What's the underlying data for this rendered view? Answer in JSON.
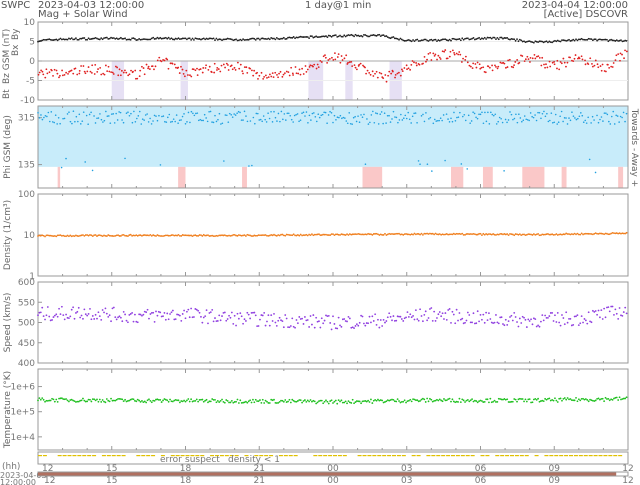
{
  "header": {
    "org": "SWPC",
    "start": "2023-04-03 12:00:00",
    "subtitle": "Mag + Solar Wind",
    "resolution": "1 day@1 min",
    "end": "2023-04-04 12:00:00",
    "source": "[Active] DSCOVR"
  },
  "colors": {
    "bt": "#222222",
    "bz": "#e02020",
    "bx": "#a050e0",
    "by": "#20a8e0",
    "phi": "#20a0e0",
    "towards": "#c8ecfa",
    "away": "#fac8c8",
    "density": "#f08020",
    "speed": "#9040e0",
    "temp": "#20c020",
    "error": "#ff3030",
    "suspect": "#e0c000",
    "dens_low": "#ff9020"
  },
  "chart_data": [
    {
      "type": "scatter",
      "name": "mag",
      "ylabel_parts": [
        "Bt",
        "Bz GSM (nT)",
        "Bx",
        "By"
      ],
      "ylim": [
        -10,
        10
      ],
      "yticks": [
        "10",
        "5",
        "0",
        "-5",
        "-10"
      ],
      "x_hours": [
        0,
        1,
        2,
        3,
        4,
        5,
        6,
        7,
        8,
        9,
        10,
        11,
        12,
        13,
        14,
        15,
        16,
        17,
        18,
        19,
        20,
        21,
        22,
        23,
        24
      ],
      "series": [
        {
          "name": "Bt",
          "values": [
            5.2,
            5.6,
            5.7,
            5.8,
            5.6,
            5.8,
            5.6,
            5.6,
            5.5,
            5.6,
            5.8,
            6.1,
            6.4,
            6.5,
            6.5,
            5.3,
            5.3,
            5.5,
            5.8,
            5.8,
            4.9,
            5.0,
            5.5,
            5.4,
            5.0
          ]
        },
        {
          "name": "Bz",
          "values": [
            -3,
            -3.5,
            -2,
            -2.5,
            -3.5,
            0,
            -3,
            -2,
            -1,
            -4,
            -3,
            -2,
            1.5,
            -1,
            -4.5,
            -2,
            1.5,
            2,
            -2,
            -1,
            1,
            -1.5,
            1,
            -2,
            2.5
          ]
        }
      ]
    },
    {
      "type": "scatter",
      "name": "phi",
      "ylabel": "Phi GSM (deg)",
      "ylim": [
        45,
        360
      ],
      "yticks": [
        "315",
        "135"
      ],
      "side_labels": [
        "Towards -",
        "Away +"
      ],
      "x_hours": [
        0,
        2,
        4,
        6,
        8,
        10,
        12,
        14,
        16,
        18,
        20,
        22,
        24
      ],
      "values": [
        310,
        320,
        315,
        305,
        315,
        300,
        320,
        310,
        150,
        310,
        140,
        315,
        300
      ]
    },
    {
      "type": "scatter",
      "name": "density",
      "ylabel": "Density (1/cm³)",
      "scale": "log",
      "ylim": [
        1,
        100
      ],
      "yticks": [
        "100",
        "10",
        "1"
      ],
      "x_hours": [
        0,
        4,
        8,
        12,
        16,
        20,
        24
      ],
      "values": [
        9.5,
        9.8,
        9.7,
        10.2,
        10.5,
        10.2,
        11
      ]
    },
    {
      "type": "scatter",
      "name": "speed",
      "ylabel": "Speed (km/s)",
      "ylim": [
        400,
        600
      ],
      "yticks": [
        "600",
        "550",
        "500",
        "450",
        "400"
      ],
      "x_hours": [
        0,
        2,
        4,
        6,
        8,
        10,
        12,
        14,
        16,
        18,
        20,
        22,
        24
      ],
      "values": [
        520,
        525,
        515,
        520,
        510,
        505,
        500,
        505,
        520,
        510,
        505,
        510,
        530
      ]
    },
    {
      "type": "scatter",
      "name": "temperature",
      "ylabel": "Temperature (°K)",
      "scale": "log",
      "ylim": [
        3000,
        5000000
      ],
      "yticks": [
        "1e+6",
        "1e+5",
        "1e+4"
      ],
      "x_hours": [
        0,
        4,
        8,
        12,
        16,
        20,
        24
      ],
      "values": [
        300000,
        280000,
        270000,
        250000,
        290000,
        280000,
        330000
      ]
    },
    {
      "type": "table",
      "name": "quality",
      "legend": [
        "error",
        "suspect",
        "density < 1"
      ]
    },
    {
      "type": "axis",
      "xlabel": "(hh)",
      "xticks": [
        "12",
        "15",
        "18",
        "21",
        "00",
        "03",
        "06",
        "09",
        "12"
      ],
      "range_label": [
        "2023-04-03",
        "12:00:00"
      ]
    }
  ]
}
